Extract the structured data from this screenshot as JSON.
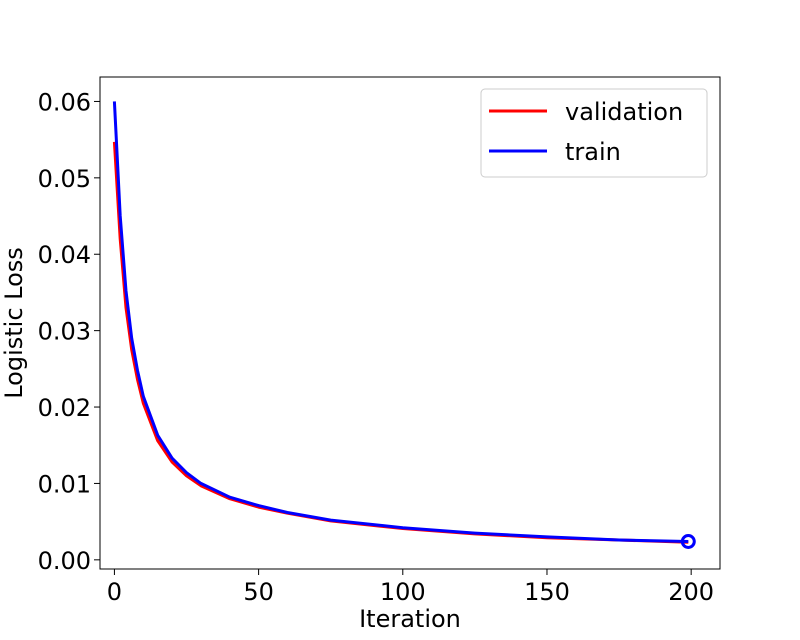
{
  "chart_data": {
    "type": "line",
    "title": "",
    "xlabel": "Iteration",
    "ylabel": "Logistic Loss",
    "xlim": [
      -5,
      210
    ],
    "ylim": [
      -0.0012,
      0.0632
    ],
    "xticks": [
      0,
      50,
      100,
      150,
      200
    ],
    "xtick_labels": [
      "0",
      "50",
      "100",
      "150",
      "200"
    ],
    "yticks": [
      0.0,
      0.01,
      0.02,
      0.03,
      0.04,
      0.05,
      0.06
    ],
    "ytick_labels": [
      "0.00",
      "0.01",
      "0.02",
      "0.03",
      "0.04",
      "0.05",
      "0.06"
    ],
    "grid": false,
    "legend_position": "top-right",
    "series": [
      {
        "name": "validation",
        "color": "#ff0000",
        "x": [
          0,
          2,
          4,
          6,
          8,
          10,
          15,
          20,
          25,
          30,
          40,
          50,
          60,
          75,
          100,
          125,
          150,
          175,
          199
        ],
        "values": [
          0.0547,
          0.042,
          0.033,
          0.0275,
          0.0236,
          0.0205,
          0.0156,
          0.0128,
          0.011,
          0.0097,
          0.008,
          0.0069,
          0.0061,
          0.0051,
          0.0041,
          0.0034,
          0.0029,
          0.0026,
          0.0023
        ]
      },
      {
        "name": "train",
        "color": "#0000ff",
        "x": [
          0,
          2,
          4,
          6,
          8,
          10,
          15,
          20,
          25,
          30,
          40,
          50,
          60,
          75,
          100,
          125,
          150,
          175,
          199
        ],
        "values": [
          0.06,
          0.045,
          0.0352,
          0.029,
          0.0248,
          0.0214,
          0.0163,
          0.0133,
          0.0114,
          0.01,
          0.0082,
          0.0071,
          0.0062,
          0.0052,
          0.0042,
          0.0035,
          0.003,
          0.0026,
          0.0024
        ]
      }
    ],
    "markers": [
      {
        "series": "train",
        "x": 199,
        "y": 0.0024,
        "shape": "circle",
        "color": "#0000ff"
      }
    ]
  }
}
